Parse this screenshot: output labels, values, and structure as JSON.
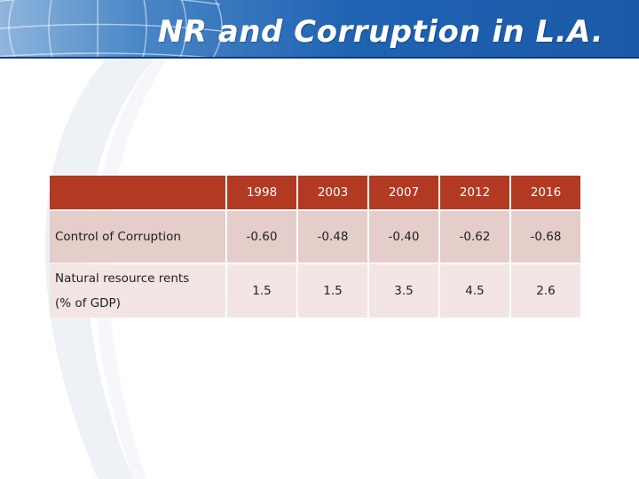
{
  "header": {
    "title": "NR and Corruption in L.A."
  },
  "table": {
    "columns": [
      "1998",
      "2003",
      "2007",
      "2012",
      "2016"
    ],
    "rows": [
      {
        "label": "Control of Corruption",
        "values": [
          "-0.60",
          "-0.48",
          "-0.40",
          "-0.62",
          "-0.68"
        ]
      },
      {
        "label_line1": "Natural resource rents",
        "label_line2": "(% of GDP)",
        "values": [
          "1.5",
          "1.5",
          "3.5",
          "4.5",
          "2.6"
        ]
      }
    ]
  },
  "colors": {
    "banner": "#1f63b3",
    "header_row": "#b23a22",
    "row_dark": "#e5cdc9",
    "row_light": "#f2e5e3"
  }
}
